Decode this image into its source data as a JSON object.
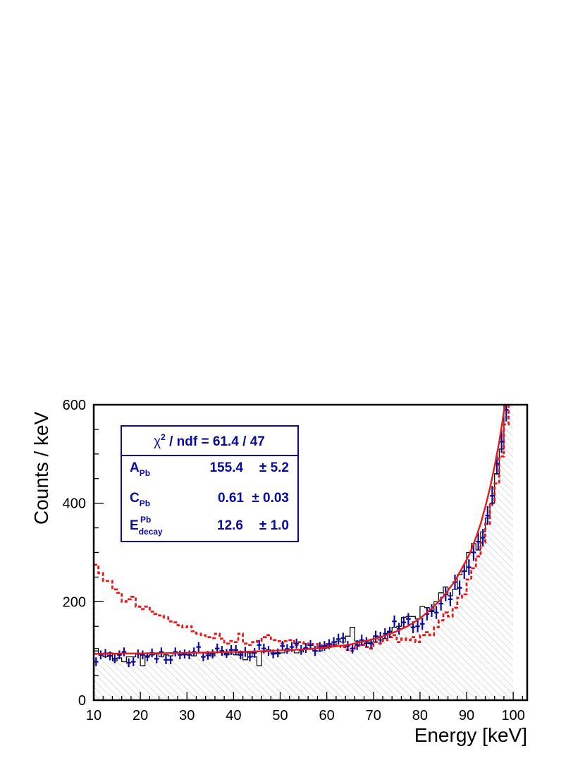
{
  "chart_data": {
    "type": "histogram",
    "xlabel": "Energy [keV]",
    "ylabel": "Counts / keV",
    "xlim": [
      10,
      103
    ],
    "ylim": [
      0,
      600
    ],
    "x_ticks": [
      10,
      20,
      30,
      40,
      50,
      60,
      70,
      80,
      90,
      100
    ],
    "y_ticks": [
      0,
      200,
      400,
      600
    ],
    "grid": false,
    "bin_width": 1,
    "colors": {
      "data": "#0a0aa0",
      "fit": "#e8191a",
      "mc_solid": "#000000",
      "mc_dashed": "#e8191a",
      "hatch": "#bdbdbd"
    },
    "series": [
      {
        "style": "data-points-with-errors",
        "x": [
          10.5,
          11.5,
          12.5,
          13.5,
          14.5,
          15.5,
          16.5,
          17.5,
          18.5,
          19.5,
          20.5,
          21.5,
          22.5,
          23.5,
          24.5,
          25.5,
          26.5,
          27.5,
          28.5,
          29.5,
          30.5,
          31.5,
          32.5,
          33.5,
          34.5,
          35.5,
          36.5,
          37.5,
          38.5,
          39.5,
          40.5,
          41.5,
          42.5,
          43.5,
          44.5,
          45.5,
          46.5,
          47.5,
          48.5,
          49.5,
          50.5,
          51.5,
          52.5,
          53.5,
          54.5,
          55.5,
          56.5,
          57.5,
          58.5,
          59.5,
          60.5,
          61.5,
          62.5,
          63.5,
          64.5,
          65.5,
          66.5,
          67.5,
          68.5,
          69.5,
          70.5,
          71.5,
          72.5,
          73.5,
          74.5,
          75.5,
          76.5,
          77.5,
          78.5,
          79.5,
          80.5,
          81.5,
          82.5,
          83.5,
          84.5,
          85.5,
          86.5,
          87.5,
          88.5,
          89.5,
          90.5,
          91.5,
          92.5,
          93.5,
          94.5,
          95.5,
          96.5,
          97.5,
          98.5
        ],
        "y": [
          78,
          92,
          95,
          90,
          84,
          92,
          98,
          76,
          78,
          94,
          92,
          88,
          96,
          84,
          98,
          82,
          82,
          98,
          92,
          94,
          92,
          98,
          108,
          88,
          91,
          94,
          105,
          100,
          95,
          102,
          102,
          92,
          98,
          88,
          96,
          112,
          105,
          100,
          94,
          96,
          110,
          104,
          108,
          115,
          102,
          106,
          112,
          100,
          108,
          110,
          114,
          118,
          124,
          126,
          110,
          105,
          112,
          122,
          118,
          115,
          130,
          128,
          135,
          138,
          160,
          145,
          158,
          165,
          148,
          150,
          155,
          175,
          182,
          178,
          196,
          215,
          205,
          240,
          228,
          262,
          270,
          300,
          322,
          330,
          375,
          415,
          480,
          525,
          590
        ],
        "yerr": [
          9,
          9,
          9,
          9,
          9,
          9,
          9,
          9,
          9,
          9,
          9,
          9,
          9,
          9,
          9,
          9,
          9,
          9,
          9,
          9,
          9,
          9,
          10,
          9,
          9,
          9,
          10,
          10,
          9,
          10,
          10,
          9,
          10,
          9,
          10,
          10,
          10,
          10,
          9,
          9,
          10,
          10,
          10,
          10,
          10,
          10,
          10,
          10,
          10,
          10,
          10,
          10,
          11,
          11,
          10,
          10,
          10,
          11,
          10,
          10,
          11,
          11,
          11,
          11,
          12,
          12,
          12,
          12,
          12,
          12,
          12,
          13,
          13,
          13,
          14,
          14,
          14,
          15,
          15,
          16,
          16,
          17,
          18,
          18,
          19,
          20,
          22,
          23,
          24
        ]
      },
      {
        "style": "fit-curve",
        "x": [
          10,
          15,
          20,
          25,
          30,
          35,
          40,
          45,
          50,
          55,
          60,
          65,
          70,
          72.5,
          75,
          77.5,
          80,
          82.5,
          85,
          87.5,
          90,
          91,
          92,
          93,
          94,
          95,
          96,
          97,
          98,
          98.5
        ],
        "y": [
          94,
          94.5,
          95,
          95.5,
          96,
          97,
          98,
          99,
          101,
          103,
          107,
          113,
          124,
          131,
          140,
          151,
          166,
          186,
          210,
          242,
          285,
          305,
          330,
          358,
          392,
          430,
          475,
          525,
          585,
          620
        ]
      },
      {
        "style": "mc-solid-hatched",
        "y": [
          105,
          95,
          88,
          96,
          80,
          86,
          78,
          88,
          88,
          95,
          70,
          90,
          92,
          94,
          88,
          92,
          90,
          95,
          96,
          92,
          92,
          90,
          96,
          96,
          95,
          90,
          98,
          98,
          92,
          94,
          92,
          96,
          82,
          96,
          88,
          70,
          98,
          102,
          96,
          94,
          96,
          100,
          103,
          96,
          98,
          105,
          104,
          100,
          100,
          105,
          110,
          112,
          120,
          118,
          130,
          148,
          120,
          112,
          115,
          118,
          130,
          122,
          125,
          140,
          148,
          150,
          168,
          170,
          170,
          165,
          190,
          188,
          180,
          200,
          218,
          230,
          212,
          225,
          255,
          262,
          300,
          318,
          305,
          342,
          370,
          400,
          460,
          510,
          600,
          620
        ]
      },
      {
        "style": "mc-dashed",
        "y": [
          275,
          258,
          242,
          242,
          225,
          218,
          200,
          205,
          210,
          190,
          185,
          190,
          180,
          175,
          172,
          168,
          160,
          158,
          152,
          148,
          150,
          140,
          135,
          132,
          128,
          126,
          135,
          125,
          115,
          120,
          118,
          135,
          115,
          112,
          118,
          120,
          128,
          132,
          122,
          120,
          115,
          120,
          122,
          112,
          118,
          115,
          112,
          114,
          110,
          112,
          114,
          112,
          110,
          108,
          102,
          100,
          110,
          112,
          108,
          105,
          118,
          115,
          122,
          128,
          132,
          118,
          125,
          122,
          128,
          118,
          132,
          138,
          132,
          148,
          162,
          178,
          170,
          188,
          208,
          215,
          245,
          268,
          292,
          320,
          358,
          400,
          440,
          495,
          560,
          620
        ]
      }
    ],
    "stats_box": {
      "header": {
        "chi": "χ",
        "sup": "2",
        "rest": " / ndf  =  61.4 / 47"
      },
      "rows": [
        {
          "base": "A",
          "sub": "Pb",
          "sup": "",
          "value": "155.4",
          "error": "± 5.2"
        },
        {
          "base": "C",
          "sub": "Pb",
          "sup": "",
          "value": "0.61",
          "error": "± 0.03"
        },
        {
          "base": "E",
          "sub": "decay",
          "sup": "Pb",
          "value": "12.6",
          "error": "± 1.0"
        }
      ]
    }
  }
}
